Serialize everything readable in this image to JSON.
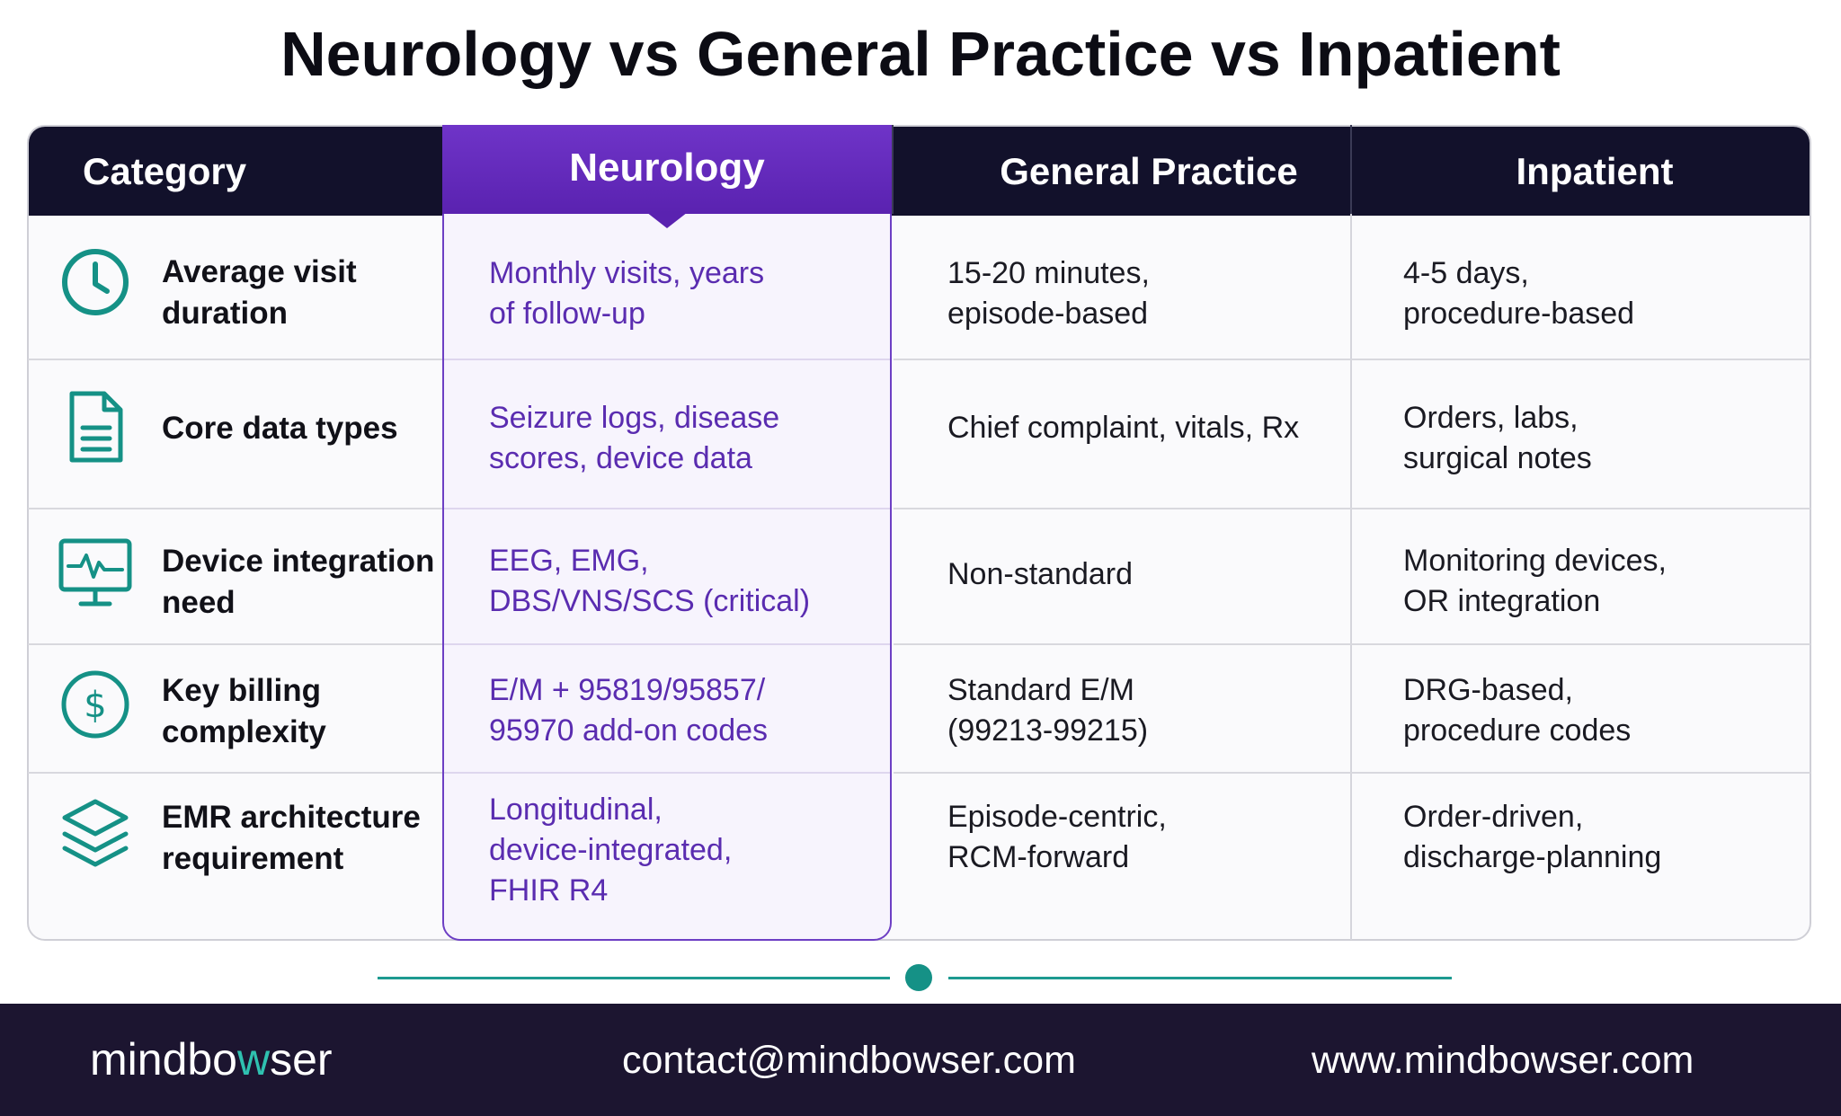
{
  "title": "Neurology vs General Practice vs Inpatient",
  "headers": {
    "category": "Category",
    "neurology": "Neurology",
    "general": "General Practice",
    "inpatient": "Inpatient"
  },
  "rows": [
    {
      "icon": "clock-icon",
      "label": [
        "Average visit",
        "duration"
      ],
      "neurology": [
        "Monthly visits, years",
        "of follow-up"
      ],
      "general": [
        "15-20 minutes,",
        "episode-based"
      ],
      "inpatient": [
        "4-5 days,",
        "procedure-based"
      ]
    },
    {
      "icon": "document-icon",
      "label": [
        "Core data types"
      ],
      "neurology": [
        "Seizure logs, disease",
        "scores, device data"
      ],
      "general": [
        "Chief complaint, vitals, Rx"
      ],
      "inpatient": [
        "Orders, labs,",
        "surgical notes"
      ]
    },
    {
      "icon": "monitor-heartbeat-icon",
      "label": [
        "Device integration",
        "need"
      ],
      "neurology": [
        "EEG, EMG,",
        "DBS/VNS/SCS (critical)"
      ],
      "general": [
        "Non-standard"
      ],
      "inpatient": [
        "Monitoring devices,",
        "OR integration"
      ]
    },
    {
      "icon": "dollar-icon",
      "label": [
        "Key billing",
        "complexity"
      ],
      "neurology": [
        "E/M + 95819/95857/",
        "95970 add-on codes"
      ],
      "general": [
        "Standard E/M",
        "(99213-99215)"
      ],
      "inpatient": [
        "DRG-based,",
        "procedure codes"
      ]
    },
    {
      "icon": "layers-icon",
      "label": [
        "EMR architecture",
        "requirement"
      ],
      "neurology": [
        "Longitudinal,",
        "device-integrated,",
        "FHIR R4"
      ],
      "general": [
        "Episode-centric,",
        "RCM-forward"
      ],
      "inpatient": [
        "Order-driven,",
        "discharge-planning"
      ]
    }
  ],
  "footer": {
    "logo_prefix": "mindbo",
    "logo_accent": "w",
    "logo_suffix": "ser",
    "email": "contact@mindbowser.com",
    "website": "www.mindbowser.com"
  },
  "colors": {
    "header_bg": "#12112b",
    "neurology_accent": "#5a22b0",
    "teal_accent": "#159186",
    "footer_bg": "#1c1530"
  }
}
